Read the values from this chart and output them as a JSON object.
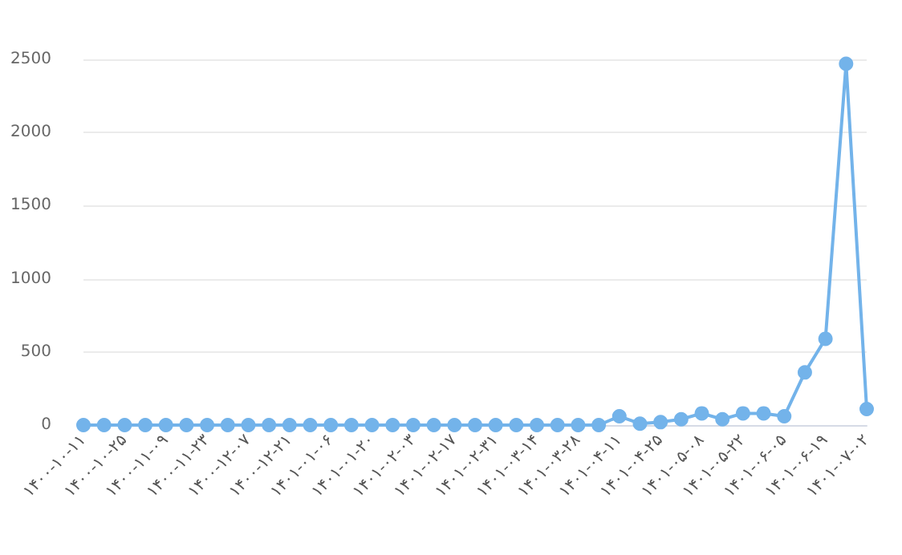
{
  "chart_data": {
    "type": "line",
    "categories": [
      "۱۴۰۰-۱۰-۱۱",
      null,
      "۱۴۰۰-۱۰-۲۵",
      null,
      "۱۴۰۰-۱۱-۰۹",
      null,
      "۱۴۰۰-۱۱-۲۳",
      null,
      "۱۴۰۰-۱۲-۰۷",
      null,
      "۱۴۰۰-۱۲-۲۱",
      null,
      "۱۴۰۱-۰۱-۰۶",
      null,
      "۱۴۰۱-۰۱-۲۰",
      null,
      "۱۴۰۱-۰۲-۰۳",
      null,
      "۱۴۰۱-۰۲-۱۷",
      null,
      "۱۴۰۱-۰۲-۳۱",
      null,
      "۱۴۰۱-۰۳-۱۴",
      null,
      "۱۴۰۱-۰۳-۲۸",
      null,
      "۱۴۰۱-۰۴-۱۱",
      null,
      "۱۴۰۱-۰۴-۲۵",
      null,
      "۱۴۰۱-۰۵-۰۸",
      null,
      "۱۴۰۱-۰۵-۲۲",
      null,
      "۱۴۰۱-۰۶-۰۵",
      null,
      "۱۴۰۱-۰۶-۱۹",
      null,
      "۱۴۰۱-۰۷-۰۲"
    ],
    "series": [
      {
        "color": "#73b3ea",
        "values": [
          0,
          0,
          0,
          0,
          0,
          0,
          0,
          0,
          0,
          0,
          0,
          0,
          0,
          0,
          0,
          0,
          0,
          0,
          0,
          0,
          0,
          0,
          0,
          0,
          0,
          0,
          60,
          10,
          20,
          40,
          80,
          40,
          80,
          80,
          60,
          360,
          590,
          2470,
          110
        ]
      }
    ],
    "ylim": [
      0,
      2500
    ],
    "yticks": [
      0,
      500,
      1000,
      1500,
      2000,
      2500
    ],
    "grid": "y",
    "marker": "circle",
    "line_style": "solid"
  }
}
